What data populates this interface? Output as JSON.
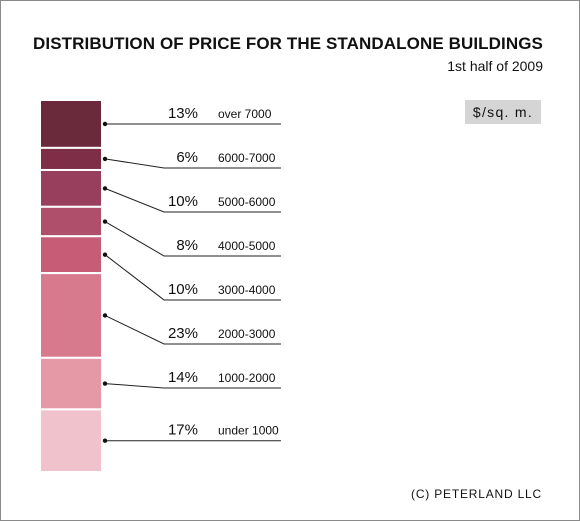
{
  "title": "DISTRIBUTION OF PRICE FOR THE STANDALONE BUILDINGS",
  "subtitle": "1st half of 2009",
  "unit_badge": "$/sq. m.",
  "footer": "(C) PETERLAND LLC",
  "chart_data": {
    "type": "bar",
    "subtype": "stacked-100-percent-single-column",
    "title": "DISTRIBUTION OF PRICE FOR THE STANDALONE BUILDINGS",
    "subtitle": "1st half of 2009",
    "unit": "$/sq. m.",
    "categories": [
      "over  7000",
      "6000-7000",
      "5000-6000",
      "4000-5000",
      "3000-4000",
      "2000-3000",
      "1000-2000",
      "under 1000"
    ],
    "values": [
      13,
      6,
      10,
      8,
      10,
      23,
      14,
      17
    ],
    "value_labels": [
      "13%",
      "6%",
      "10%",
      "8%",
      "10%",
      "23%",
      "14%",
      "17%"
    ],
    "colors": [
      "#6b2a3c",
      "#7e2f47",
      "#973f5d",
      "#b04f6c",
      "#c65c76",
      "#d87a8d",
      "#e599a7",
      "#efc2cc"
    ],
    "grid": false,
    "legend": "none"
  }
}
